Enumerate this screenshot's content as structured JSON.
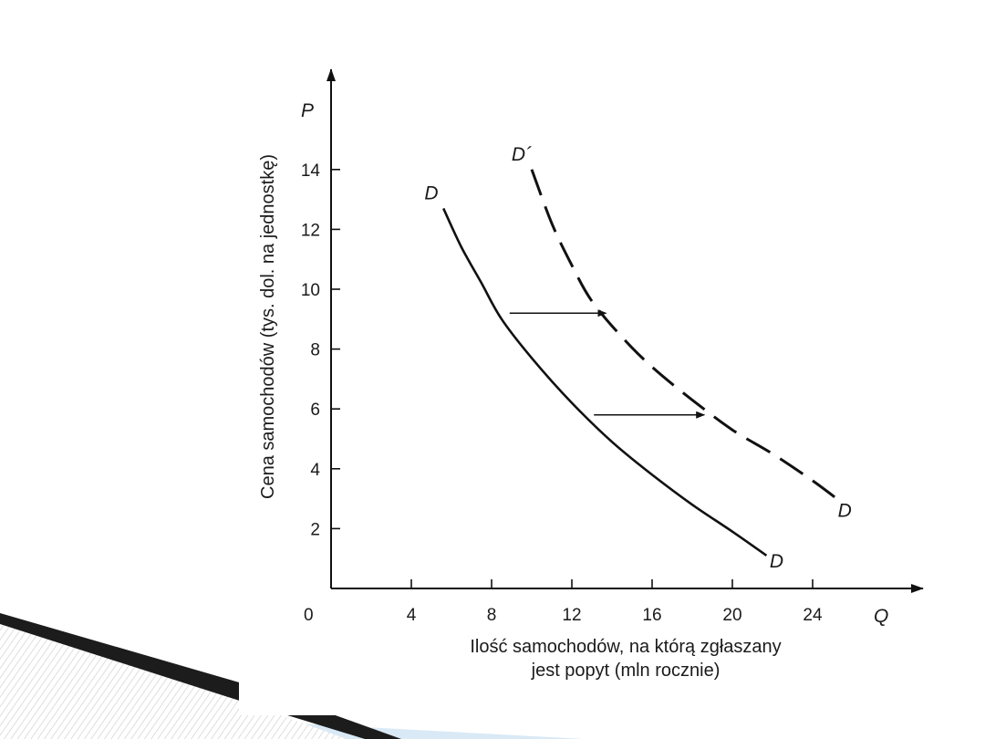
{
  "chart_data": {
    "type": "line",
    "xlabel": "Ilość samochodów, na którą zgłaszany",
    "xlabel_line2": "jest popyt (mln rocznie)",
    "ylabel": "Cena samochodów (tys. dol. na jednostkę)",
    "x_axis_symbol": "Q",
    "y_axis_symbol": "P",
    "origin_label": "0",
    "xlim": [
      0,
      29
    ],
    "ylim": [
      0,
      17
    ],
    "x_ticks": [
      4,
      8,
      12,
      16,
      20,
      24
    ],
    "y_ticks": [
      2,
      4,
      6,
      8,
      10,
      12,
      14
    ],
    "grid": false,
    "series": [
      {
        "name": "D",
        "style": "solid",
        "color": "#111111",
        "points": [
          [
            5.6,
            12.7
          ],
          [
            6.5,
            11.4
          ],
          [
            7.5,
            10.2
          ],
          [
            8.5,
            9.0
          ],
          [
            10,
            7.7
          ],
          [
            12,
            6.2
          ],
          [
            14,
            4.9
          ],
          [
            16,
            3.8
          ],
          [
            18,
            2.8
          ],
          [
            20,
            1.9
          ],
          [
            21.7,
            1.1
          ]
        ]
      },
      {
        "name": "D´",
        "style": "dashed",
        "color": "#111111",
        "points": [
          [
            10,
            14.0
          ],
          [
            11,
            12.2
          ],
          [
            12,
            10.8
          ],
          [
            13,
            9.6
          ],
          [
            14.5,
            8.4
          ],
          [
            16,
            7.4
          ],
          [
            18,
            6.3
          ],
          [
            20,
            5.3
          ],
          [
            22,
            4.5
          ],
          [
            24,
            3.6
          ],
          [
            25.4,
            2.9
          ]
        ]
      }
    ],
    "curve_labels": [
      {
        "text": "D",
        "x": 5.0,
        "y": 13.0
      },
      {
        "text": "D",
        "x": 22.2,
        "y": 0.7
      },
      {
        "text": "D´",
        "x": 9.5,
        "y": 14.3
      },
      {
        "text": "D",
        "x": 25.6,
        "y": 2.4
      }
    ],
    "annotations": [
      {
        "type": "arrow",
        "from": [
          8.9,
          9.2
        ],
        "to": [
          13.7,
          9.2
        ]
      },
      {
        "type": "arrow",
        "from": [
          13.1,
          5.8
        ],
        "to": [
          18.6,
          5.8
        ]
      }
    ]
  },
  "decor": {
    "accent_dark": "#1c1c1c",
    "accent_light": "#cfe2f0"
  }
}
